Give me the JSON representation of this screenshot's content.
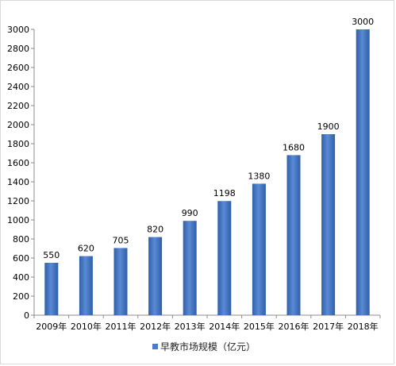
{
  "chart_data": {
    "type": "bar",
    "categories": [
      "2009年",
      "2010年",
      "2011年",
      "2012年",
      "2013年",
      "2014年",
      "2015年",
      "2016年",
      "2017年",
      "2018年"
    ],
    "series": [
      {
        "name": "早教市场规模（亿元）",
        "values": [
          550,
          620,
          705,
          820,
          990,
          1198,
          1380,
          1680,
          1900,
          3000
        ],
        "data_labels": [
          "550",
          "620",
          "705",
          "820",
          "990",
          "1198",
          "1380",
          "1680",
          "1900",
          "3000"
        ]
      }
    ],
    "ylim": [
      0,
      3000
    ],
    "yticks": [
      0,
      200,
      400,
      600,
      800,
      1000,
      1200,
      1400,
      1600,
      1800,
      2000,
      2200,
      2400,
      2600,
      2800,
      3000
    ],
    "ytick_labels": [
      "0",
      "200",
      "400",
      "600",
      "800",
      "1000",
      "1200",
      "1400",
      "1600",
      "1800",
      "2000",
      "2200",
      "2400",
      "2600",
      "2800",
      "3000"
    ],
    "title": "",
    "xlabel": "",
    "ylabel": "",
    "grid": false,
    "legend_position": "bottom",
    "colors": {
      "bar": "#4a7cc9",
      "bar_light": "#5b8ad4",
      "bar_dark": "#2f5fa8",
      "axis": "#8c8c8c",
      "text": "#000000"
    }
  }
}
